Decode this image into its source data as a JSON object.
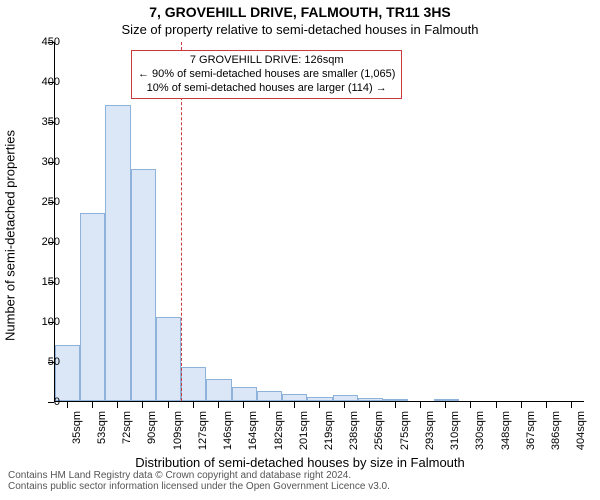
{
  "title": "7, GROVEHILL DRIVE, FALMOUTH, TR11 3HS",
  "subtitle": "Size of property relative to semi-detached houses in Falmouth",
  "ylabel": "Number of semi-detached properties",
  "xlabel": "Distribution of semi-detached houses by size in Falmouth",
  "footer_line1": "Contains HM Land Registry data © Crown copyright and database right 2024.",
  "footer_line2": "Contains public sector information licensed under the Open Government Licence v3.0.",
  "chart": {
    "type": "bar",
    "bar_fill": "#dbe7f6",
    "bar_stroke": "#8fb2db",
    "background": "#ffffff",
    "axis_color": "#000000",
    "marker_color": "#c93b3b",
    "annot_border": "#c93b3b",
    "ylim": [
      0,
      450
    ],
    "yticks": [
      0,
      50,
      100,
      150,
      200,
      250,
      300,
      350,
      400,
      450
    ],
    "xticks": [
      "35sqm",
      "53sqm",
      "72sqm",
      "90sqm",
      "109sqm",
      "127sqm",
      "146sqm",
      "164sqm",
      "182sqm",
      "201sqm",
      "219sqm",
      "238sqm",
      "256sqm",
      "275sqm",
      "293sqm",
      "310sqm",
      "330sqm",
      "348sqm",
      "367sqm",
      "386sqm",
      "404sqm"
    ],
    "values": [
      70,
      235,
      370,
      290,
      105,
      42,
      28,
      17,
      12,
      9,
      5,
      7,
      4,
      3,
      0,
      3,
      0,
      0,
      0,
      0,
      0
    ],
    "marker_index": 5,
    "annot": {
      "l1": "7 GROVEHILL DRIVE: 126sqm",
      "l2": "← 90% of semi-detached houses are smaller (1,065)",
      "l3": "10% of semi-detached houses are larger (114) →"
    }
  }
}
